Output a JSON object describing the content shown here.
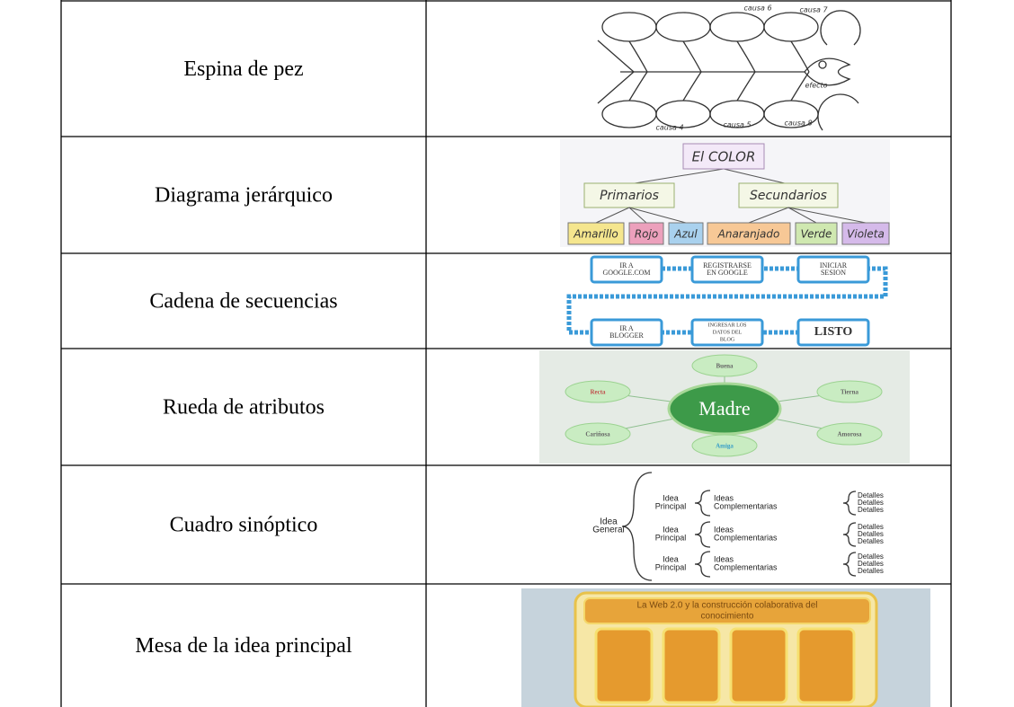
{
  "rows": [
    {
      "label": "Espina de pez",
      "diagram": {
        "causes": [
          "causa 6",
          "causa 7",
          "causa 4",
          "causa 5",
          "causa 8"
        ],
        "effect": "efecto"
      }
    },
    {
      "label": "Diagrama jerárquico",
      "diagram": {
        "root": "El COLOR",
        "groups": [
          {
            "label": "Primarios",
            "items": [
              "Amarillo",
              "Rojo",
              "Azul"
            ]
          },
          {
            "label": "Secundarios",
            "items": [
              "Anaranjado",
              "Verde",
              "Violeta"
            ]
          }
        ]
      }
    },
    {
      "label": "Cadena de secuencias",
      "diagram": {
        "steps": [
          [
            "IR A",
            "GOOGLE.COM"
          ],
          [
            "REGISTRARSE",
            "EN GOOGLE"
          ],
          [
            "INICIAR",
            "SESION"
          ],
          [
            "IR A",
            "BLOGGER"
          ],
          [
            "INGRESAR LOS",
            "DATOS DEL",
            "BLOG"
          ],
          [
            "LISTO"
          ]
        ]
      }
    },
    {
      "label": "Rueda de atributos",
      "diagram": {
        "center": "Madre",
        "attributes": [
          "Buena",
          "Recta",
          "Tierna",
          "Cariñosa",
          "Amorosa",
          "Amiga"
        ]
      }
    },
    {
      "label": "Cuadro sinóptico",
      "diagram": {
        "general": [
          "Idea",
          "General"
        ],
        "branches": [
          {
            "principal": [
              "Idea",
              "Principal"
            ],
            "complementary": [
              "Ideas",
              "Complementarias"
            ],
            "details": [
              "Detalles",
              "Detalles",
              "Detalles"
            ]
          },
          {
            "principal": [
              "Idea",
              "Principal"
            ],
            "complementary": [
              "Ideas",
              "Complementarias"
            ],
            "details": [
              "Detalles",
              "Detalles",
              "Detalles"
            ]
          },
          {
            "principal": [
              "Idea",
              "Principal"
            ],
            "complementary": [
              "Ideas",
              "Complementarias"
            ],
            "details": [
              "Detalles",
              "Detalles",
              "Detalles"
            ]
          }
        ]
      }
    },
    {
      "label": "Mesa de la idea principal",
      "diagram": {
        "title": [
          "La Web 2.0 y la construcción colaborativa del",
          "conocimiento"
        ]
      }
    }
  ]
}
